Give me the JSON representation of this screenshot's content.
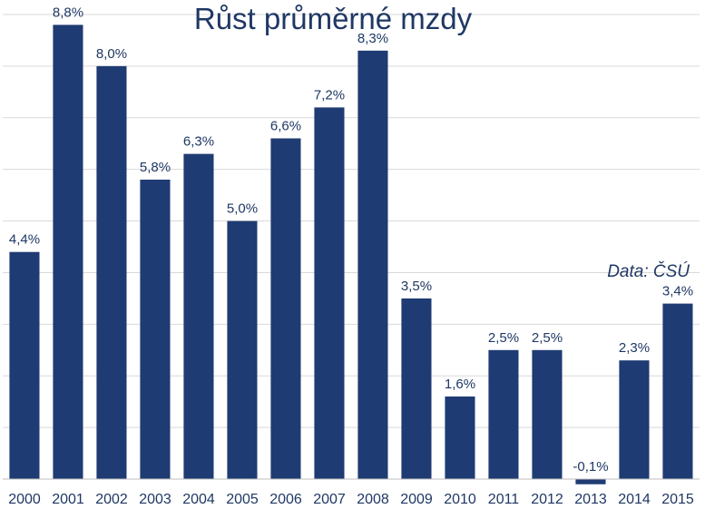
{
  "chart_data": {
    "type": "bar",
    "title": "Růst průměrné mzdy",
    "source_note": "Data: ČSÚ",
    "xlabel": "",
    "ylabel": "",
    "categories": [
      "2000",
      "2001",
      "2002",
      "2003",
      "2004",
      "2005",
      "2006",
      "2007",
      "2008",
      "2009",
      "2010",
      "2011",
      "2012",
      "2013",
      "2014",
      "2015"
    ],
    "values": [
      4.4,
      8.8,
      8.0,
      5.8,
      6.3,
      5.0,
      6.6,
      7.2,
      8.3,
      3.5,
      1.6,
      2.5,
      2.5,
      -0.1,
      2.3,
      3.4
    ],
    "data_labels": [
      "4,4%",
      "8,8%",
      "8,0%",
      "5,8%",
      "6,3%",
      "5,0%",
      "6,6%",
      "7,2%",
      "8,3%",
      "3,5%",
      "1,6%",
      "2,5%",
      "2,5%",
      "-0,1%",
      "2,3%",
      "3,4%"
    ],
    "ylim": [
      0,
      9
    ],
    "gridlines": true,
    "legend": "none",
    "colors": {
      "bar": "#1f3b73",
      "text": "#1f3864",
      "grid": "#d9d9d9",
      "axis": "#bfbfbf"
    }
  }
}
